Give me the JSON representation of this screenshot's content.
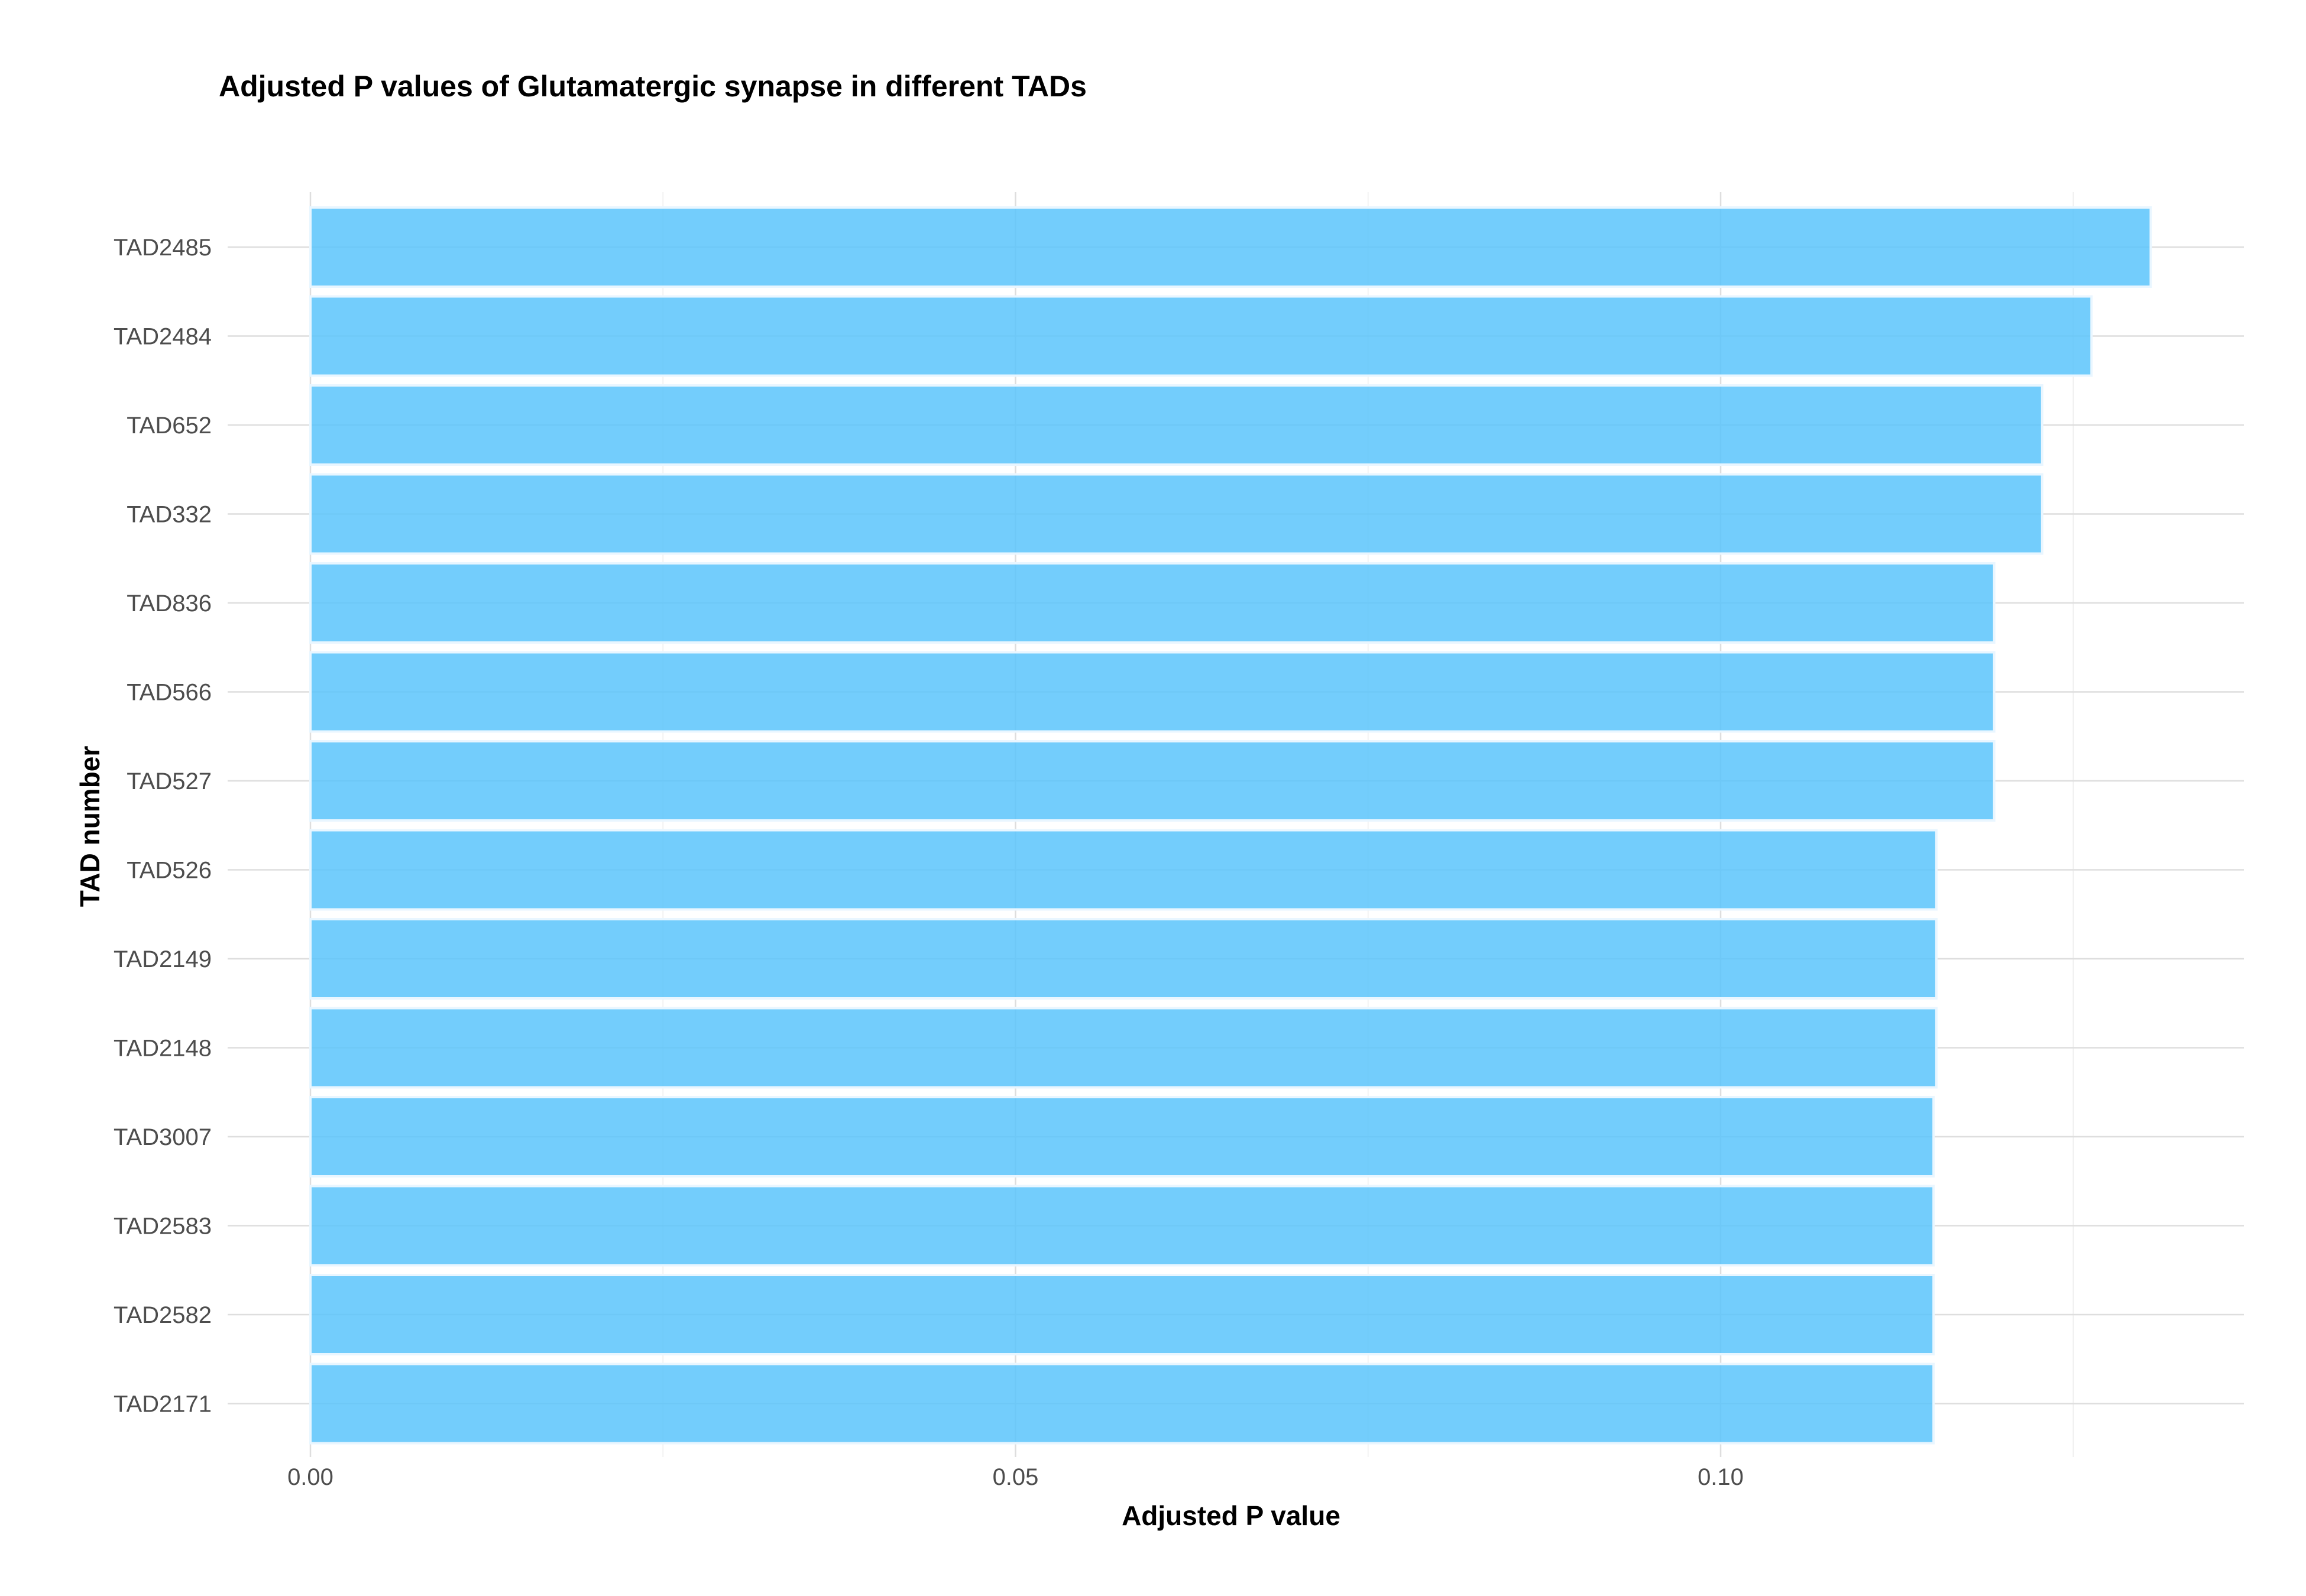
{
  "chart_data": {
    "type": "bar",
    "orientation": "horizontal",
    "title": "Adjusted P values of Glutamatergic synapse in different TADs",
    "xlabel": "Adjusted P value",
    "ylabel": "TAD number",
    "xlim": [
      0,
      0.137
    ],
    "xticks": [
      0.0,
      0.05,
      0.1
    ],
    "xtick_labels": [
      "0.00",
      "0.05",
      "0.10"
    ],
    "grid": true,
    "legend": "none",
    "bar_color": "#5bc4fb",
    "categories": [
      "TAD2485",
      "TAD2484",
      "TAD652",
      "TAD332",
      "TAD836",
      "TAD566",
      "TAD527",
      "TAD526",
      "TAD2149",
      "TAD2148",
      "TAD3007",
      "TAD2583",
      "TAD2582",
      "TAD2171"
    ],
    "values": [
      0.1305,
      0.1263,
      0.1228,
      0.1228,
      0.1194,
      0.1194,
      0.1194,
      0.1153,
      0.1153,
      0.1153,
      0.1151,
      0.1151,
      0.1151,
      0.1151
    ]
  }
}
